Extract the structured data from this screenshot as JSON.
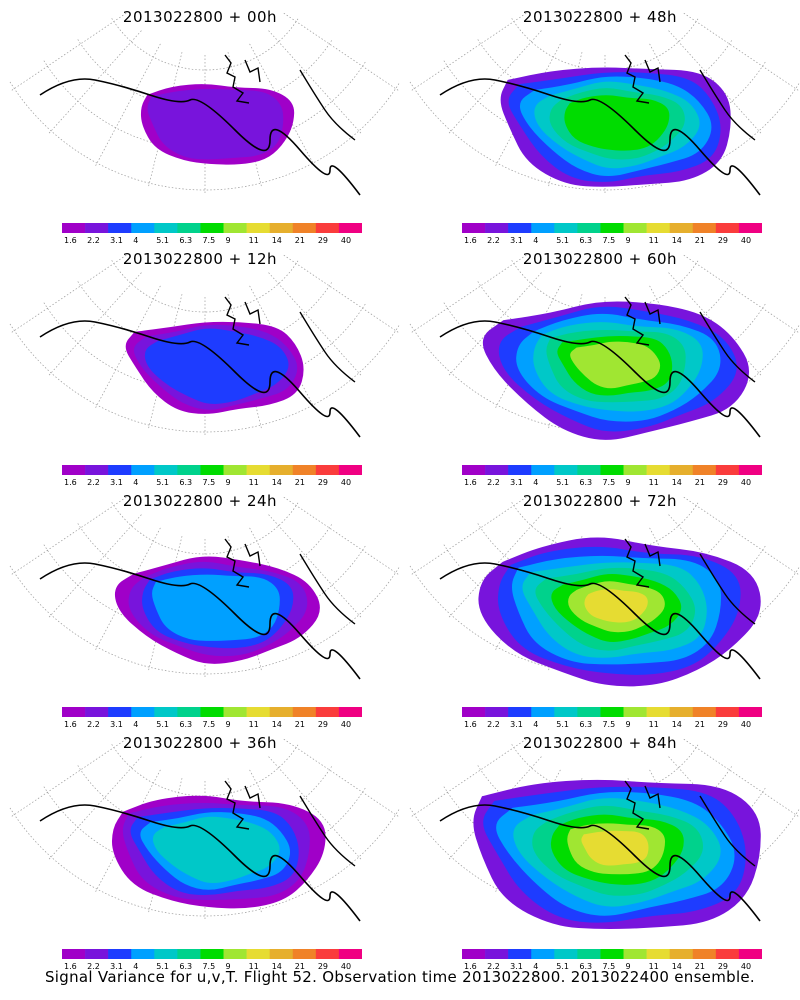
{
  "colorbar": {
    "labels": [
      "1.6",
      "2.2",
      "3.1",
      "4",
      "5.1",
      "6.3",
      "7.5",
      "9",
      "11",
      "14",
      "21",
      "29",
      "40"
    ],
    "colors": [
      "#a000c8",
      "#7814dc",
      "#1e3cff",
      "#00a0ff",
      "#00c8c8",
      "#00d28c",
      "#00dc00",
      "#a0e632",
      "#e6dc32",
      "#e6af2d",
      "#f08228",
      "#fa3c3c",
      "#f00082"
    ]
  },
  "panels": [
    {
      "title": "2013022800 + 00h",
      "level": 0
    },
    {
      "title": "2013022800 + 48h",
      "level": 4
    },
    {
      "title": "2013022800 + 12h",
      "level": 1
    },
    {
      "title": "2013022800 + 60h",
      "level": 5
    },
    {
      "title": "2013022800 + 24h",
      "level": 2
    },
    {
      "title": "2013022800 + 72h",
      "level": 6
    },
    {
      "title": "2013022800 + 36h",
      "level": 3
    },
    {
      "title": "2013022800 + 84h",
      "level": 7
    }
  ],
  "caption": "Signal Variance for u,v,T. Flight 52. Observation time 2013022800. 2013022400 ensemble."
}
